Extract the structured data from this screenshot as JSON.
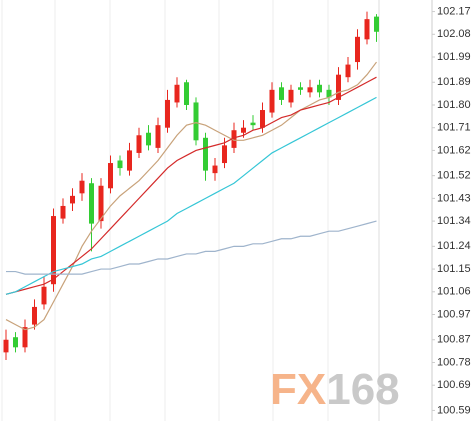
{
  "chart_data": {
    "type": "candlestick",
    "watermark": [
      "FX",
      "168"
    ],
    "ylim": [
      100.56,
      102.2
    ],
    "yticks": [
      102.17,
      102.08,
      101.99,
      101.89,
      {
        "value": 101.8,
        "label": "101.80"
      },
      101.71,
      101.62,
      101.52,
      101.43,
      101.34,
      101.24,
      101.15,
      101.06,
      100.97,
      100.87,
      100.78,
      100.69,
      100.59
    ],
    "grid": false,
    "up_color": "#e8261e",
    "down_color": "#33cc33",
    "open": [
      100.82,
      100.88,
      100.84,
      100.93,
      101.01,
      101.09,
      101.35,
      101.41,
      101.45,
      101.49,
      101.34,
      101.47,
      101.58,
      101.54,
      101.61,
      101.69,
      101.63,
      101.71,
      101.81,
      101.89,
      101.81,
      101.67,
      101.53,
      101.57,
      101.63,
      101.69,
      101.73,
      101.71,
      101.77,
      101.87,
      101.81,
      101.87,
      101.85,
      101.88,
      101.86,
      101.82,
      101.91,
      101.97,
      102.06,
      102.15
    ],
    "high": [
      100.91,
      100.9,
      100.95,
      101.03,
      101.12,
      101.39,
      101.43,
      101.47,
      101.53,
      101.51,
      101.51,
      101.6,
      101.6,
      101.65,
      101.71,
      101.72,
      101.75,
      101.86,
      101.91,
      101.9,
      101.83,
      101.69,
      101.59,
      101.67,
      101.73,
      101.74,
      101.76,
      101.81,
      101.89,
      101.89,
      101.88,
      101.89,
      101.9,
      101.9,
      101.88,
      101.95,
      101.99,
      102.1,
      102.17,
      102.16
    ],
    "low": [
      100.79,
      100.82,
      100.82,
      100.91,
      100.99,
      101.06,
      101.33,
      101.38,
      101.42,
      101.22,
      101.31,
      101.45,
      101.52,
      101.52,
      101.59,
      101.62,
      101.61,
      101.69,
      101.79,
      101.78,
      101.64,
      101.5,
      101.5,
      101.55,
      101.61,
      101.67,
      101.7,
      101.69,
      101.75,
      101.8,
      101.79,
      101.84,
      101.83,
      101.83,
      101.8,
      101.8,
      101.89,
      101.94,
      102.04,
      102.05
    ],
    "close": [
      100.87,
      100.84,
      100.92,
      101.0,
      101.08,
      101.36,
      101.4,
      101.44,
      101.5,
      101.33,
      101.48,
      101.57,
      101.55,
      101.62,
      101.68,
      101.64,
      101.72,
      101.82,
      101.88,
      101.8,
      101.66,
      101.54,
      101.56,
      101.64,
      101.7,
      101.71,
      101.72,
      101.78,
      101.86,
      101.82,
      101.86,
      101.86,
      101.87,
      101.85,
      101.83,
      101.92,
      101.96,
      102.07,
      102.14,
      102.09
    ],
    "series": [
      {
        "color": "#c8a27a",
        "values": [
          100.95,
          100.93,
          100.91,
          100.92,
          100.95,
          101.02,
          101.09,
          101.16,
          101.24,
          101.3,
          101.35,
          101.4,
          101.44,
          101.47,
          101.5,
          101.54,
          101.58,
          101.63,
          101.68,
          101.72,
          101.73,
          101.72,
          101.7,
          101.68,
          101.66,
          101.66,
          101.67,
          101.68,
          101.7,
          101.72,
          101.75,
          101.78,
          101.8,
          101.82,
          101.83,
          101.85,
          101.86,
          101.88,
          101.92,
          101.97
        ]
      },
      {
        "color": "#d42a2a",
        "values": [
          101.05,
          101.06,
          101.07,
          101.08,
          101.09,
          101.11,
          101.14,
          101.17,
          101.2,
          101.23,
          101.27,
          101.31,
          101.35,
          101.39,
          101.43,
          101.47,
          101.51,
          101.55,
          101.58,
          101.6,
          101.62,
          101.63,
          101.64,
          101.65,
          101.67,
          101.68,
          101.7,
          101.71,
          101.73,
          101.75,
          101.76,
          101.78,
          101.79,
          101.8,
          101.81,
          101.83,
          101.85,
          101.87,
          101.89,
          101.91
        ]
      },
      {
        "color": "#35c6d6",
        "values": [
          101.05,
          101.06,
          101.08,
          101.1,
          101.12,
          101.14,
          101.15,
          101.16,
          101.17,
          101.19,
          101.2,
          101.22,
          101.24,
          101.26,
          101.28,
          101.3,
          101.32,
          101.34,
          101.37,
          101.39,
          101.41,
          101.43,
          101.45,
          101.47,
          101.49,
          101.52,
          101.55,
          101.58,
          101.61,
          101.63,
          101.65,
          101.67,
          101.69,
          101.71,
          101.73,
          101.75,
          101.77,
          101.79,
          101.81,
          101.83
        ]
      },
      {
        "color": "#9fb4cc",
        "values": [
          101.14,
          101.14,
          101.13,
          101.13,
          101.13,
          101.13,
          101.13,
          101.13,
          101.13,
          101.14,
          101.15,
          101.15,
          101.16,
          101.17,
          101.17,
          101.18,
          101.19,
          101.19,
          101.2,
          101.21,
          101.21,
          101.22,
          101.22,
          101.23,
          101.24,
          101.24,
          101.25,
          101.25,
          101.26,
          101.27,
          101.27,
          101.28,
          101.28,
          101.29,
          101.3,
          101.3,
          101.31,
          101.32,
          101.33,
          101.34
        ]
      }
    ]
  }
}
